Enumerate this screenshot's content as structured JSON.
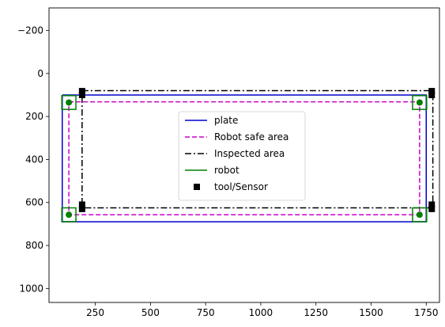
{
  "chart_data": {
    "type": "line",
    "x_ticks": [
      250,
      500,
      750,
      1000,
      1250,
      1500,
      1750
    ],
    "y_ticks": [
      -200,
      0,
      200,
      400,
      600,
      800,
      1000
    ],
    "y_tick_labels": [
      "−200",
      "0",
      "200",
      "400",
      "600",
      "800",
      "1000"
    ],
    "xlim": [
      40,
      1810
    ],
    "ylim": [
      1065,
      -305
    ],
    "y_inverted": true,
    "grid": false,
    "legend": {
      "placement": "center",
      "entries": [
        {
          "label": "plate",
          "color": "#0000cc",
          "style": "solid"
        },
        {
          "label": "Robot safe area",
          "color": "#cc00cc",
          "style": "dashed"
        },
        {
          "label": "Inspected area",
          "color": "#000000",
          "style": "dashdot"
        },
        {
          "label": "robot",
          "color": "#008000",
          "style": "solid"
        },
        {
          "label": "tool/Sensor",
          "color": "#000000",
          "style": "marker-square"
        }
      ]
    },
    "series": [
      {
        "name": "plate",
        "color": "#0000cc",
        "style": "solid",
        "points": [
          [
            100,
            100
          ],
          [
            1750,
            100
          ],
          [
            1750,
            690
          ],
          [
            100,
            690
          ],
          [
            100,
            100
          ]
        ]
      },
      {
        "name": "Robot safe area",
        "color": "#cc00cc",
        "style": "dashed",
        "points": [
          [
            130,
            132
          ],
          [
            1720,
            132
          ],
          [
            1720,
            657
          ],
          [
            130,
            657
          ],
          [
            130,
            132
          ]
        ]
      },
      {
        "name": "Inspected area",
        "color": "#000000",
        "style": "dashdot",
        "points": [
          [
            190,
            80
          ],
          [
            1780,
            80
          ],
          [
            1780,
            625
          ],
          [
            190,
            625
          ],
          [
            190,
            80
          ]
        ]
      },
      {
        "name": "robot",
        "color": "#008000",
        "style": "square-outline",
        "centers": [
          [
            130,
            135
          ],
          [
            1720,
            135
          ],
          [
            1720,
            657
          ],
          [
            130,
            657
          ]
        ],
        "half_size": 32
      },
      {
        "name": "robot-points",
        "color": "#008000",
        "style": "marker-circle",
        "points": [
          [
            130,
            135
          ],
          [
            1720,
            135
          ],
          [
            1720,
            657
          ],
          [
            130,
            657
          ]
        ]
      },
      {
        "name": "tool/Sensor",
        "color": "#000000",
        "style": "marker-square",
        "points": [
          [
            190,
            82
          ],
          [
            190,
            100
          ],
          [
            1775,
            82
          ],
          [
            1775,
            100
          ],
          [
            190,
            610
          ],
          [
            190,
            630
          ],
          [
            1775,
            610
          ],
          [
            1775,
            630
          ]
        ]
      }
    ]
  }
}
